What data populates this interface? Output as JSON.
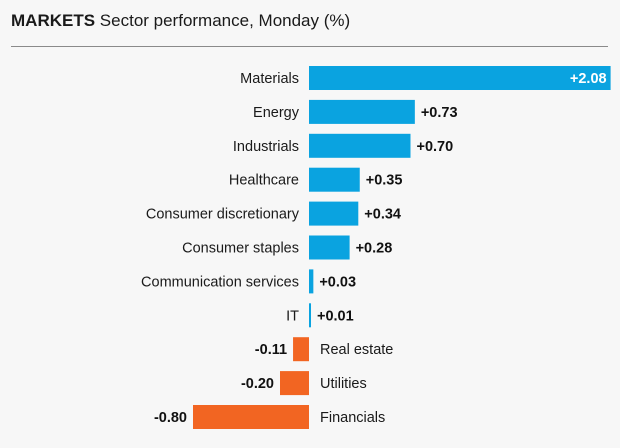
{
  "header": {
    "kicker": "MARKETS",
    "title": "Sector performance, Monday (%)"
  },
  "chart_data": {
    "type": "bar",
    "orientation": "horizontal",
    "title": "Sector performance, Monday (%)",
    "categories": [
      "Materials",
      "Energy",
      "Industrials",
      "Healthcare",
      "Consumer discretionary",
      "Consumer staples",
      "Communication services",
      "IT",
      "Real estate",
      "Utilities",
      "Financials"
    ],
    "values": [
      2.08,
      0.73,
      0.7,
      0.35,
      0.34,
      0.28,
      0.03,
      0.01,
      -0.11,
      -0.2,
      -0.8
    ],
    "value_labels": [
      "+2.08",
      "+0.73",
      "+0.70",
      "+0.35",
      "+0.34",
      "+0.28",
      "+0.03",
      "+0.01",
      "-0.11",
      "-0.20",
      "-0.80"
    ],
    "xlim": [
      -0.8,
      2.08
    ],
    "grid": false,
    "colors": {
      "positive": "#0aa3e0",
      "negative": "#f26522"
    }
  }
}
